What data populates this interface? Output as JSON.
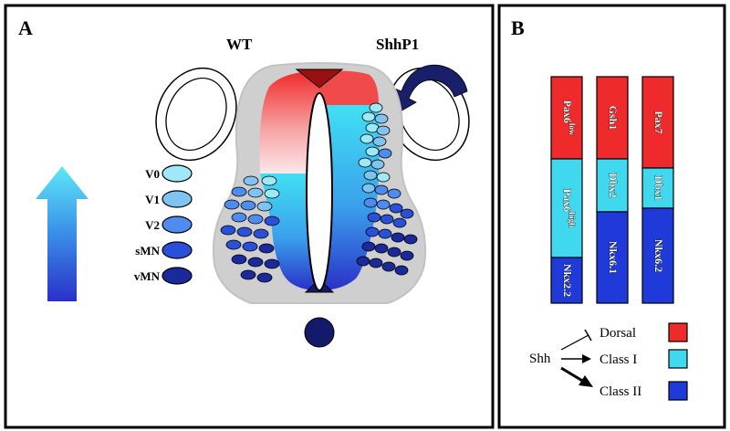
{
  "panel_a": {
    "letter": "A",
    "header_left": "WT",
    "header_right": "ShhP1",
    "legend": [
      {
        "label": "V0",
        "color": "#9fe8f8"
      },
      {
        "label": "V1",
        "color": "#7fc4f0"
      },
      {
        "label": "V2",
        "color": "#4f8cf0"
      },
      {
        "label": "sMN",
        "color": "#2a4fd8"
      },
      {
        "label": "vMN",
        "color": "#1a2a9a"
      }
    ]
  },
  "panel_b": {
    "letter": "B",
    "columns": [
      {
        "segments": [
          {
            "label": "Pax6low",
            "base": "Pax6",
            "sup": "low",
            "color": "#ef2a2a"
          },
          {
            "label": "Pax6high",
            "base": "Pax6",
            "sup": "high",
            "color": "#3fd8ee"
          },
          {
            "label": "Nkx2.2",
            "base": "Nkx2.2",
            "sup": "",
            "color": "#1f3ad8"
          }
        ]
      },
      {
        "segments": [
          {
            "label": "Gsh1",
            "base": "Gsh1",
            "sup": "",
            "color": "#ef2a2a"
          },
          {
            "label": "Dbx2",
            "base": "Dbx2",
            "sup": "",
            "color": "#3fd8ee"
          },
          {
            "label": "Nkx6.1",
            "base": "Nkx6.1",
            "sup": "",
            "color": "#1f3ad8"
          }
        ]
      },
      {
        "segments": [
          {
            "label": "Pax7",
            "base": "Pax7",
            "sup": "",
            "color": "#ef2a2a"
          },
          {
            "label": "Dbx1",
            "base": "Dbx1",
            "sup": "",
            "color": "#3fd8ee"
          },
          {
            "label": "Nkx6.2",
            "base": "Nkx6.2",
            "sup": "",
            "color": "#1f3ad8"
          }
        ]
      }
    ],
    "shh_label": "Shh",
    "key": [
      {
        "label": "Dorsal",
        "color": "#ef2a2a"
      },
      {
        "label": "Class I",
        "color": "#3fd8ee"
      },
      {
        "label": "Class II",
        "color": "#1f3ad8"
      }
    ]
  }
}
